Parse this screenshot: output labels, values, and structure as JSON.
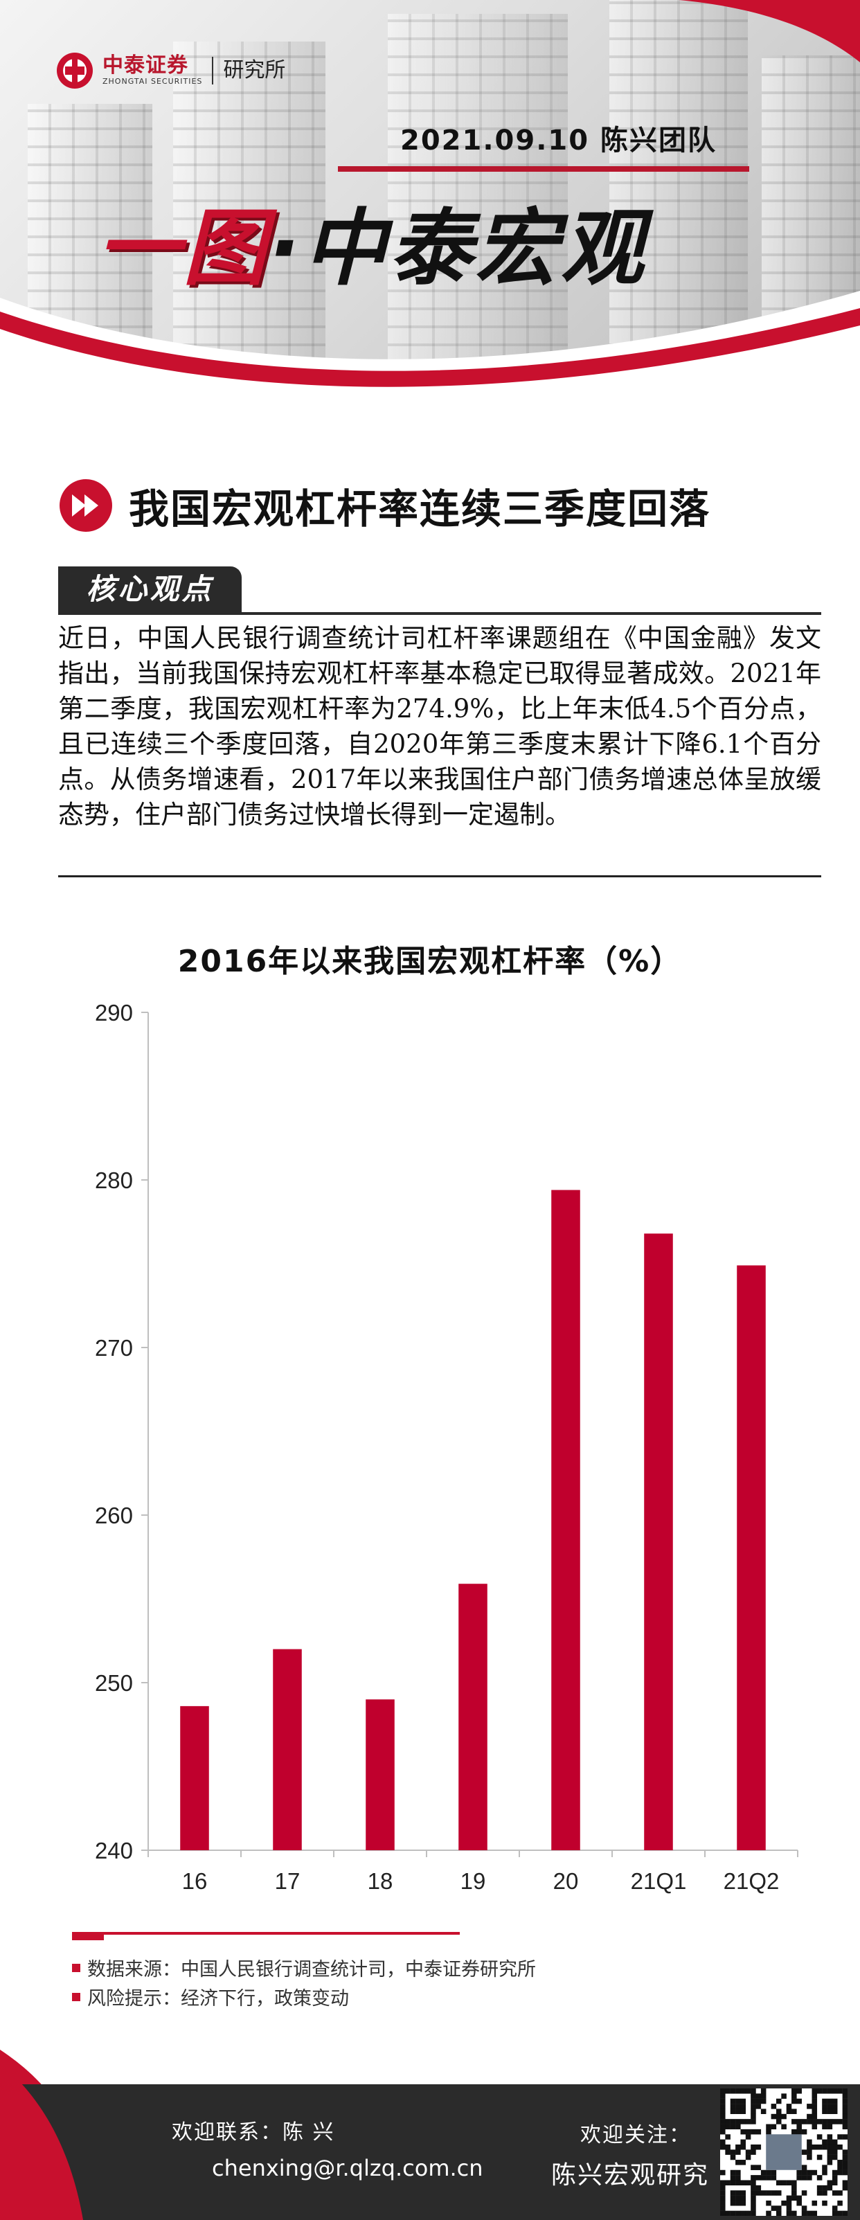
{
  "header": {
    "logo_cn": "中泰证券",
    "logo_en": "ZHONGTAI SECURITIES",
    "logo_sub": "研究所",
    "date_team": "2021.09.10  陈兴团队",
    "title_red": "一图",
    "title_dot": "·",
    "title_black": "中泰宏观"
  },
  "section": {
    "title": "我国宏观杠杆率连续三季度回落",
    "tab_label": "核心观点",
    "paragraph": "近日，中国人民银行调查统计司杠杆率课题组在《中国金融》发文指出，当前我国保持宏观杠杆率基本稳定已取得显著成效。2021年第二季度，我国宏观杠杆率为274.9%，比上年末低4.5个百分点，且已连续三个季度回落，自2020年第三季度末累计下降6.1个百分点。从债务增速看，2017年以来我国住户部门债务增速总体呈放缓态势，住户部门债务过快增长得到一定遏制。"
  },
  "chart_data": {
    "type": "bar",
    "title": "2016年以来我国宏观杠杆率（%）",
    "categories": [
      "16",
      "17",
      "18",
      "19",
      "20",
      "21Q1",
      "21Q2"
    ],
    "values": [
      248.6,
      252.0,
      249.0,
      255.9,
      279.4,
      276.8,
      274.9
    ],
    "ylim": [
      240,
      290
    ],
    "yticks": [
      240,
      250,
      260,
      270,
      280,
      290
    ],
    "xlabel": "",
    "ylabel": "",
    "bar_color": "#c0002d",
    "grid": false
  },
  "notes": {
    "source": "数据来源：中国人民银行调查统计司，中泰证券研究所",
    "risk": "风险提示：经济下行，政策变动"
  },
  "footer": {
    "contact_label": "欢迎联系：陈  兴",
    "contact_email": "chenxing@r.qlzq.com.cn",
    "follow_label": "欢迎关注：",
    "follow_name": "陈兴宏观研究"
  },
  "colors": {
    "accent": "#c8102e",
    "dark": "#2b2b2b"
  },
  "icons": {
    "logo": "zhongtai-logo-icon",
    "section": "fast-forward-icon",
    "qr": "qr-code-icon"
  }
}
